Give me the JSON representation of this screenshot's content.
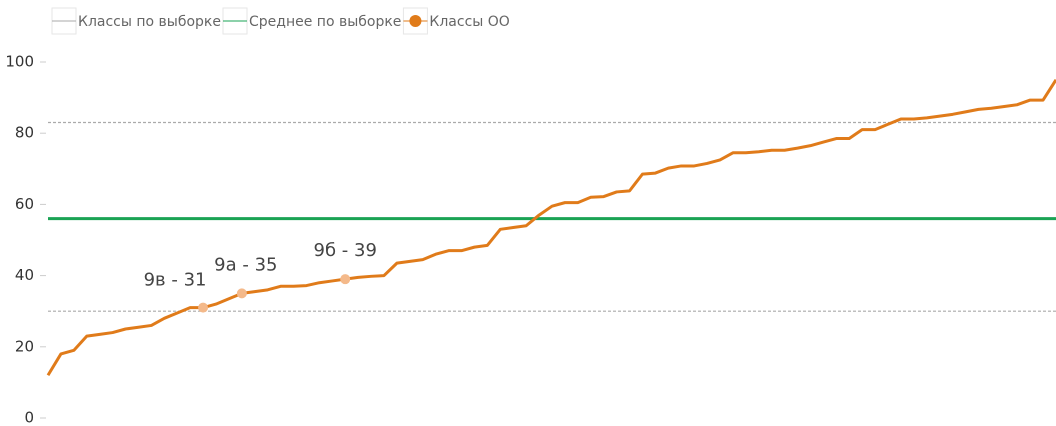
{
  "chart_data": {
    "type": "line",
    "ylim": [
      0,
      100
    ],
    "yticks": [
      0,
      20,
      40,
      60,
      80,
      100
    ],
    "series": [
      {
        "name": "Классы по выборке",
        "color": "#aaaaaa",
        "values": [
          30,
          83
        ],
        "style": "dotted"
      },
      {
        "name": "Среднее по выборке",
        "color": "#1aa354",
        "values": [
          56
        ]
      },
      {
        "name": "Классы ОО",
        "color": "#e07b1a",
        "values": [
          12,
          18,
          19,
          23,
          23.5,
          24,
          25,
          25.5,
          26,
          28,
          29.5,
          31,
          31,
          32,
          33.5,
          35,
          35.5,
          36,
          37,
          37,
          37.2,
          38,
          38.5,
          39,
          39.5,
          39.8,
          40,
          43.5,
          44,
          44.5,
          46,
          47,
          47,
          48,
          48.5,
          53,
          53.5,
          54,
          57,
          59.5,
          60.5,
          60.5,
          62,
          62.2,
          63.5,
          63.8,
          68.5,
          68.8,
          70.2,
          70.8,
          70.8,
          71.5,
          72.5,
          74.5,
          74.5,
          74.8,
          75.2,
          75.2,
          75.8,
          76.5,
          77.5,
          78.5,
          78.5,
          81,
          81,
          82.5,
          84,
          84,
          84.3,
          84.8,
          85.3,
          86,
          86.7,
          87,
          87.5,
          88,
          89.3,
          89.3,
          95
        ]
      }
    ],
    "points": [
      {
        "label": "9в - 31",
        "x": 12,
        "value": 31
      },
      {
        "label": "9а - 35",
        "x": 15,
        "value": 35
      },
      {
        "label": "9б - 39",
        "x": 23,
        "value": 39
      }
    ]
  }
}
